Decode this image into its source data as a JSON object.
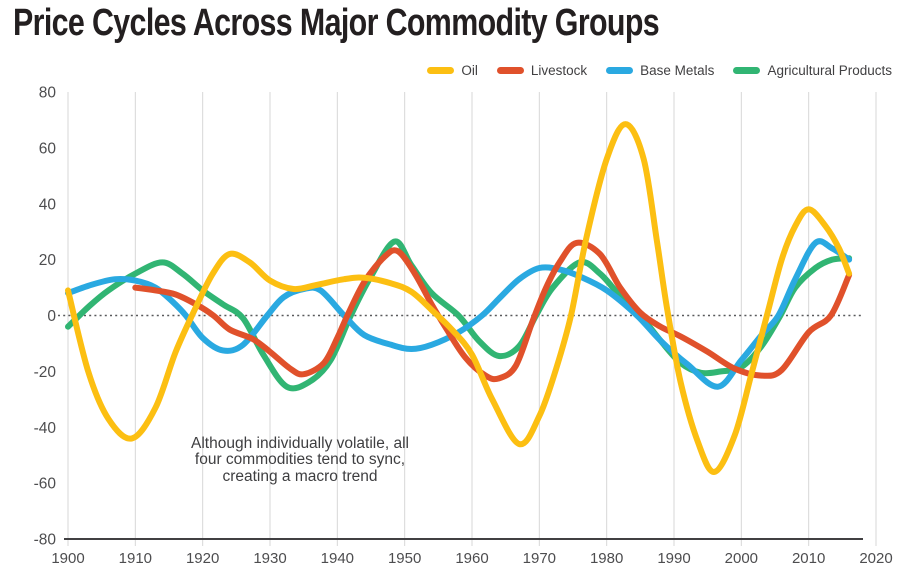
{
  "title": "Price Cycles Across Major Commodity Groups",
  "colors": {
    "oil": "#FCBF12",
    "livestock": "#E0512B",
    "base_metals": "#2AA9E1",
    "agricultural": "#31B573",
    "title_text": "#231f20",
    "axis_text": "#4d4d4f",
    "gridline": "#d7d7d7",
    "zero_line": "#58595b",
    "axis_line": "#414042"
  },
  "legend": [
    {
      "label": "Oil",
      "color": "#FCBF12"
    },
    {
      "label": "Livestock",
      "color": "#E0512B"
    },
    {
      "label": "Base Metals",
      "color": "#2AA9E1"
    },
    {
      "label": "Agricultural Products",
      "color": "#31B573"
    }
  ],
  "annotation": {
    "lines": [
      "Although individually volatile, all",
      "four commodities tend to sync,",
      "creating a macro trend"
    ]
  },
  "chart_data": {
    "type": "line",
    "title": "Price Cycles Across Major Commodity Groups",
    "xlabel": "",
    "ylabel": "",
    "xlim": [
      1900,
      2020
    ],
    "ylim": [
      -80,
      80
    ],
    "x_ticks": [
      1900,
      1910,
      1920,
      1930,
      1940,
      1950,
      1960,
      1970,
      1980,
      1990,
      2000,
      2010,
      2020
    ],
    "y_ticks": [
      80,
      60,
      40,
      20,
      0,
      -20,
      -40,
      -60,
      -80
    ],
    "grid": "vertical-only",
    "zero_line": "dotted",
    "legend_position": "top-right",
    "series": [
      {
        "name": "Agricultural Products",
        "color": "#31B573",
        "points": [
          [
            1900,
            -4
          ],
          [
            1903,
            3
          ],
          [
            1906,
            9
          ],
          [
            1910,
            15
          ],
          [
            1914,
            19
          ],
          [
            1917,
            15
          ],
          [
            1920,
            9
          ],
          [
            1923,
            4
          ],
          [
            1926,
            -1
          ],
          [
            1929,
            -14
          ],
          [
            1932.5,
            -25.5
          ],
          [
            1936,
            -23.5
          ],
          [
            1939,
            -16
          ],
          [
            1942,
            0
          ],
          [
            1945,
            14
          ],
          [
            1948.5,
            26.5
          ],
          [
            1951,
            18
          ],
          [
            1954,
            8
          ],
          [
            1958,
            0
          ],
          [
            1961,
            -9
          ],
          [
            1964,
            -14.5
          ],
          [
            1967,
            -11
          ],
          [
            1969.5,
            0
          ],
          [
            1972,
            10
          ],
          [
            1976,
            19
          ],
          [
            1979,
            15
          ],
          [
            1982,
            7
          ],
          [
            1985,
            0
          ],
          [
            1988,
            -9
          ],
          [
            1991,
            -17
          ],
          [
            1994,
            -20.5
          ],
          [
            1997,
            -20
          ],
          [
            2000,
            -18.5
          ],
          [
            2003,
            -11
          ],
          [
            2005.8,
            0
          ],
          [
            2008,
            10
          ],
          [
            2011,
            17
          ],
          [
            2013.5,
            20
          ],
          [
            2016,
            20.5
          ]
        ]
      },
      {
        "name": "Base Metals",
        "color": "#2AA9E1",
        "points": [
          [
            1900,
            8
          ],
          [
            1903.5,
            11
          ],
          [
            1907,
            13
          ],
          [
            1910,
            12.5
          ],
          [
            1913,
            10
          ],
          [
            1915.5,
            5
          ],
          [
            1917.5,
            0
          ],
          [
            1920,
            -8
          ],
          [
            1923,
            -12.5
          ],
          [
            1926,
            -10.5
          ],
          [
            1929.6,
            0
          ],
          [
            1932,
            6.5
          ],
          [
            1935,
            9.5
          ],
          [
            1937.5,
            9
          ],
          [
            1941,
            0
          ],
          [
            1944,
            -7
          ],
          [
            1948,
            -10.5
          ],
          [
            1951,
            -12
          ],
          [
            1954,
            -10.5
          ],
          [
            1958,
            -6
          ],
          [
            1961.5,
            0
          ],
          [
            1964,
            6
          ],
          [
            1967,
            13
          ],
          [
            1970,
            17
          ],
          [
            1973,
            16.5
          ],
          [
            1976,
            14
          ],
          [
            1980,
            9
          ],
          [
            1984.5,
            0
          ],
          [
            1988,
            -9
          ],
          [
            1992,
            -17.5
          ],
          [
            1996.5,
            -25.5
          ],
          [
            2000,
            -16
          ],
          [
            2003,
            -7
          ],
          [
            2005.5,
            0
          ],
          [
            2008,
            13
          ],
          [
            2011,
            26
          ],
          [
            2013.5,
            24
          ],
          [
            2016,
            20
          ]
        ]
      },
      {
        "name": "Livestock",
        "color": "#E0512B",
        "points": [
          [
            1910,
            10
          ],
          [
            1913,
            9
          ],
          [
            1916,
            7.5
          ],
          [
            1919,
            4
          ],
          [
            1921.6,
            0
          ],
          [
            1924,
            -5
          ],
          [
            1927.5,
            -8.5
          ],
          [
            1930,
            -13
          ],
          [
            1933,
            -19
          ],
          [
            1935,
            -21
          ],
          [
            1938,
            -17
          ],
          [
            1940,
            -8
          ],
          [
            1941.5,
            0
          ],
          [
            1944,
            12
          ],
          [
            1947,
            21
          ],
          [
            1949,
            23
          ],
          [
            1951.5,
            15
          ],
          [
            1954,
            4
          ],
          [
            1956,
            -4
          ],
          [
            1959,
            -15
          ],
          [
            1962,
            -21.5
          ],
          [
            1964,
            -22.5
          ],
          [
            1966.5,
            -18
          ],
          [
            1969,
            -2
          ],
          [
            1971,
            10
          ],
          [
            1973,
            19
          ],
          [
            1975.5,
            26
          ],
          [
            1979,
            22
          ],
          [
            1982,
            10
          ],
          [
            1985,
            1
          ],
          [
            1988,
            -4
          ],
          [
            1991,
            -7.5
          ],
          [
            1995,
            -13
          ],
          [
            1999,
            -19
          ],
          [
            2003,
            -21.5
          ],
          [
            2006,
            -19.5
          ],
          [
            2010,
            -6
          ],
          [
            2013.3,
            0
          ],
          [
            2016,
            14.5
          ]
        ]
      },
      {
        "name": "Oil",
        "color": "#FCBF12",
        "points": [
          [
            1900,
            9
          ],
          [
            1903,
            -20
          ],
          [
            1906,
            -37
          ],
          [
            1909.5,
            -44
          ],
          [
            1913,
            -33
          ],
          [
            1916,
            -13
          ],
          [
            1919,
            3
          ],
          [
            1921.5,
            15
          ],
          [
            1924,
            22
          ],
          [
            1927,
            19
          ],
          [
            1930,
            12.5
          ],
          [
            1933.5,
            9.5
          ],
          [
            1937,
            11
          ],
          [
            1941,
            13
          ],
          [
            1944,
            13.5
          ],
          [
            1948,
            11.5
          ],
          [
            1951,
            8.5
          ],
          [
            1954,
            2
          ],
          [
            1957,
            -5
          ],
          [
            1960,
            -14
          ],
          [
            1963,
            -30
          ],
          [
            1967,
            -46
          ],
          [
            1970,
            -36
          ],
          [
            1972.5,
            -19
          ],
          [
            1974.7,
            0
          ],
          [
            1977,
            28
          ],
          [
            1980,
            56
          ],
          [
            1982.8,
            68.5
          ],
          [
            1985.5,
            56
          ],
          [
            1987.5,
            26
          ],
          [
            1989,
            2
          ],
          [
            1991,
            -24
          ],
          [
            1993.5,
            -45
          ],
          [
            1996,
            -56
          ],
          [
            1999,
            -43
          ],
          [
            2001.5,
            -21
          ],
          [
            2003.8,
            0
          ],
          [
            2006,
            20
          ],
          [
            2008,
            32
          ],
          [
            2010,
            38
          ],
          [
            2012.5,
            32
          ],
          [
            2014.5,
            24
          ],
          [
            2016,
            15
          ]
        ]
      }
    ]
  }
}
